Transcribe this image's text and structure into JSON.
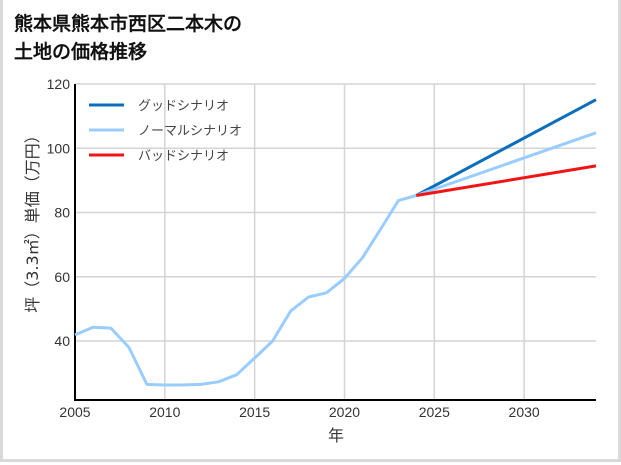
{
  "title_line1": "熊本県熊本市西区二本木の",
  "title_line2": "土地の価格推移",
  "colors": {
    "good": "#0a6ebd",
    "normal": "#99ccff",
    "bad": "#f01414",
    "grid": "#d4d4d4",
    "axis": "#000000",
    "frame": "#d9d9d9"
  },
  "chart_data": {
    "type": "line",
    "title": "熊本県熊本市西区二本木の土地の価格推移",
    "xlabel": "年",
    "ylabel": "坪（3.3㎡）単価（万円）",
    "xlim": [
      2005,
      2034
    ],
    "ylim": [
      22,
      120
    ],
    "xticks": [
      2005,
      2010,
      2015,
      2020,
      2025,
      2030
    ],
    "yticks": [
      40,
      60,
      80,
      100,
      120
    ],
    "grid": true,
    "legend_position": "upper left",
    "legend": [
      "グッドシナリオ",
      "ノーマルシナリオ",
      "バッドシナリオ"
    ],
    "series": [
      {
        "name": "ノーマルシナリオ (実績)",
        "color": "#99ccff",
        "x": [
          2005,
          2006,
          2007,
          2008,
          2009,
          2010,
          2011,
          2012,
          2013,
          2014,
          2015,
          2016,
          2017,
          2018,
          2019,
          2020,
          2021,
          2022,
          2023,
          2024
        ],
        "values": [
          41.9,
          44.3,
          44.0,
          38.0,
          26.5,
          26.3,
          26.3,
          26.5,
          27.3,
          29.5,
          34.7,
          40.0,
          49.3,
          53.7,
          55.0,
          59.5,
          65.9,
          74.7,
          83.7,
          85.3
        ]
      },
      {
        "name": "グッドシナリオ",
        "color": "#0a6ebd",
        "x": [
          2024,
          2034
        ],
        "values": [
          85.3,
          115.1
        ]
      },
      {
        "name": "ノーマルシナリオ",
        "color": "#99ccff",
        "x": [
          2024,
          2034
        ],
        "values": [
          85.3,
          104.8
        ]
      },
      {
        "name": "バッドシナリオ",
        "color": "#f01414",
        "x": [
          2024,
          2034
        ],
        "values": [
          85.3,
          94.5
        ]
      }
    ]
  }
}
